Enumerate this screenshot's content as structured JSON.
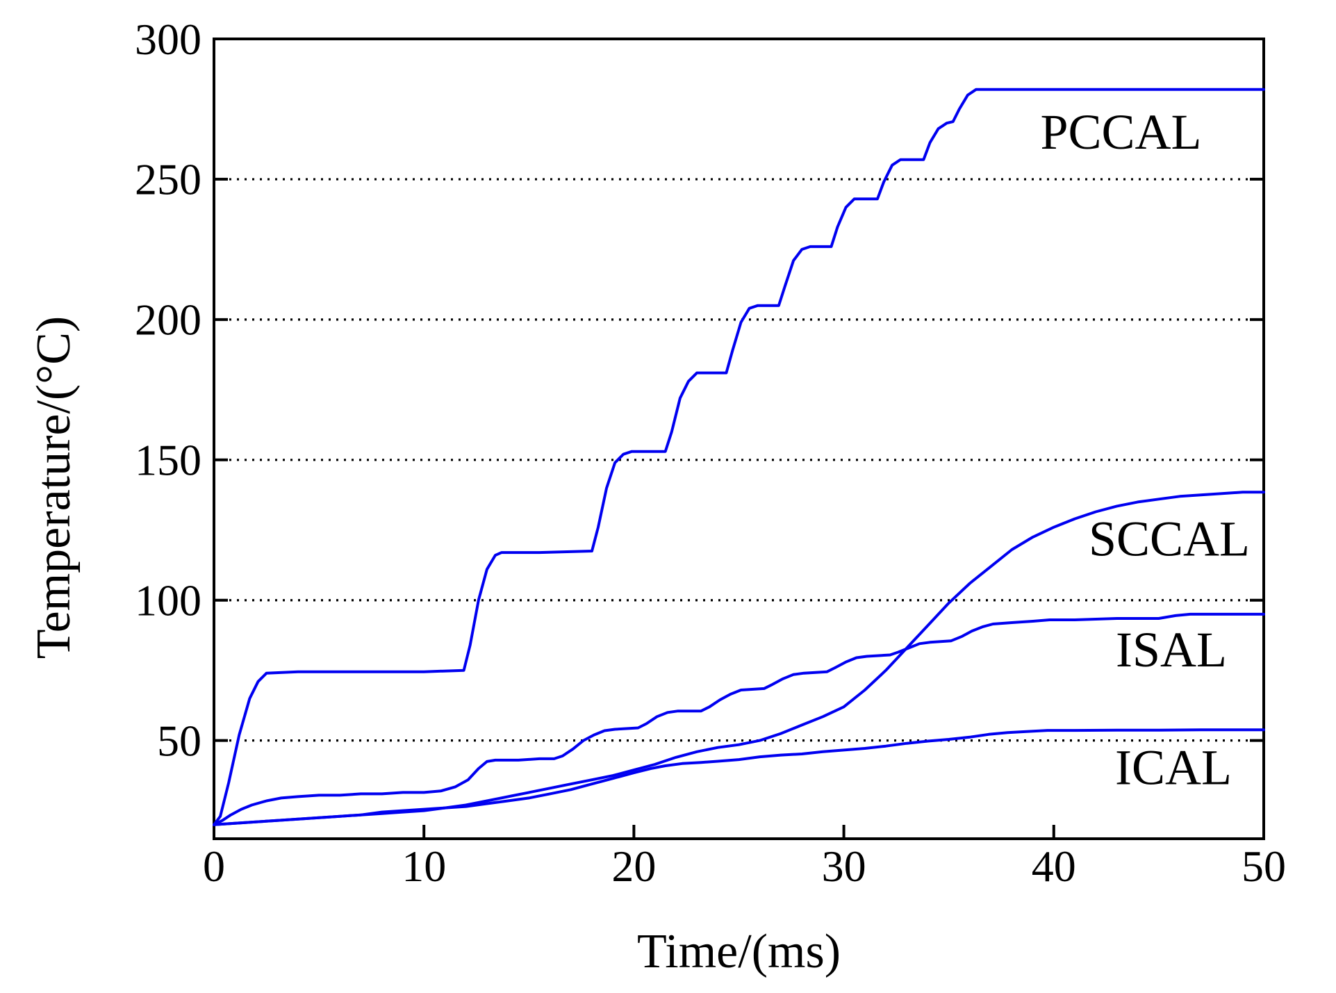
{
  "figure": {
    "background": "#ffffff",
    "curve_color": "#0000f0",
    "axis_color": "#000000",
    "grid_color": "#000000"
  },
  "chart_data": {
    "type": "line",
    "title": "",
    "xlabel": "Time/(ms)",
    "ylabel": "Temperature/(°C)",
    "xlim": [
      0,
      50
    ],
    "ylim": [
      15,
      300
    ],
    "x_ticks": [
      0,
      10,
      20,
      30,
      40,
      50
    ],
    "y_ticks": [
      50,
      100,
      150,
      200,
      250,
      300
    ],
    "grid": "horizontal dotted lines at y = 50,100,150,200,250",
    "legend_position": "inline-labels-right",
    "series": [
      {
        "name": "PCCAL",
        "color": "#0000f0",
        "label_anchor": [
          43.2,
          267
        ],
        "points": [
          [
            0,
            20
          ],
          [
            0.3,
            23
          ],
          [
            0.7,
            35
          ],
          [
            1.2,
            52
          ],
          [
            1.7,
            65
          ],
          [
            2.1,
            71
          ],
          [
            2.5,
            74
          ],
          [
            4,
            74.5
          ],
          [
            7,
            74.5
          ],
          [
            10,
            74.5
          ],
          [
            11.9,
            75
          ],
          [
            12.2,
            84
          ],
          [
            12.6,
            100
          ],
          [
            13,
            111
          ],
          [
            13.4,
            116
          ],
          [
            13.7,
            117
          ],
          [
            15.5,
            117
          ],
          [
            18,
            117.5
          ],
          [
            18.3,
            126
          ],
          [
            18.7,
            140
          ],
          [
            19.1,
            149
          ],
          [
            19.5,
            152
          ],
          [
            19.9,
            153
          ],
          [
            21.5,
            153
          ],
          [
            21.8,
            160
          ],
          [
            22.2,
            172
          ],
          [
            22.6,
            178
          ],
          [
            23,
            181
          ],
          [
            24.4,
            181
          ],
          [
            24.7,
            189
          ],
          [
            25.1,
            199
          ],
          [
            25.5,
            204
          ],
          [
            25.9,
            205
          ],
          [
            26.9,
            205
          ],
          [
            27.2,
            212
          ],
          [
            27.6,
            221
          ],
          [
            28,
            225
          ],
          [
            28.4,
            226
          ],
          [
            29.4,
            226
          ],
          [
            29.7,
            233
          ],
          [
            30.1,
            240
          ],
          [
            30.5,
            243
          ],
          [
            31.6,
            243
          ],
          [
            31.9,
            249
          ],
          [
            32.3,
            255
          ],
          [
            32.7,
            257
          ],
          [
            33.8,
            257
          ],
          [
            34.1,
            263
          ],
          [
            34.5,
            268
          ],
          [
            34.9,
            270
          ],
          [
            35.2,
            270.5
          ],
          [
            35.5,
            275
          ],
          [
            35.9,
            280
          ],
          [
            36.3,
            282
          ],
          [
            40,
            282
          ],
          [
            45,
            282
          ],
          [
            50,
            282
          ]
        ]
      },
      {
        "name": "SCCAL",
        "color": "#0000f0",
        "label_anchor": [
          45.5,
          122
        ],
        "points": [
          [
            0,
            20
          ],
          [
            1,
            20.5
          ],
          [
            2,
            21
          ],
          [
            3,
            21.5
          ],
          [
            4,
            22
          ],
          [
            5,
            22.5
          ],
          [
            6,
            23
          ],
          [
            7,
            23.5
          ],
          [
            8,
            24
          ],
          [
            9,
            24.5
          ],
          [
            10,
            25
          ],
          [
            11,
            26
          ],
          [
            12,
            27
          ],
          [
            13,
            28.5
          ],
          [
            14,
            30
          ],
          [
            15,
            31.5
          ],
          [
            16,
            33
          ],
          [
            17,
            34.5
          ],
          [
            18,
            36
          ],
          [
            19,
            37.5
          ],
          [
            20,
            39.5
          ],
          [
            21,
            41.5
          ],
          [
            22,
            44
          ],
          [
            23,
            46
          ],
          [
            24,
            47.5
          ],
          [
            25,
            48.5
          ],
          [
            26,
            50
          ],
          [
            27,
            52.5
          ],
          [
            28,
            55.5
          ],
          [
            29,
            58.5
          ],
          [
            30,
            62
          ],
          [
            31,
            68
          ],
          [
            32,
            75
          ],
          [
            33,
            83
          ],
          [
            34,
            91
          ],
          [
            35,
            99
          ],
          [
            36,
            106
          ],
          [
            37,
            112
          ],
          [
            38,
            118
          ],
          [
            39,
            122.5
          ],
          [
            40,
            126
          ],
          [
            41,
            129
          ],
          [
            42,
            131.5
          ],
          [
            43,
            133.5
          ],
          [
            44,
            135
          ],
          [
            45,
            136
          ],
          [
            46,
            137
          ],
          [
            47,
            137.5
          ],
          [
            48,
            138
          ],
          [
            49,
            138.5
          ],
          [
            50,
            138.5
          ]
        ]
      },
      {
        "name": "ISAL",
        "color": "#0000f0",
        "label_anchor": [
          45.6,
          82.5
        ],
        "points": [
          [
            0,
            20
          ],
          [
            0.4,
            21.5
          ],
          [
            0.8,
            23.5
          ],
          [
            1.3,
            25.5
          ],
          [
            1.8,
            27
          ],
          [
            2.5,
            28.5
          ],
          [
            3.2,
            29.5
          ],
          [
            4,
            30
          ],
          [
            5,
            30.5
          ],
          [
            6,
            30.5
          ],
          [
            7,
            31
          ],
          [
            8,
            31
          ],
          [
            9,
            31.5
          ],
          [
            10,
            31.5
          ],
          [
            10.8,
            32
          ],
          [
            11.5,
            33.5
          ],
          [
            12.1,
            36
          ],
          [
            12.6,
            40
          ],
          [
            13,
            42.5
          ],
          [
            13.4,
            43
          ],
          [
            14.5,
            43
          ],
          [
            15.5,
            43.5
          ],
          [
            16.2,
            43.5
          ],
          [
            16.6,
            44.5
          ],
          [
            17.1,
            47
          ],
          [
            17.6,
            50
          ],
          [
            18.1,
            52
          ],
          [
            18.6,
            53.5
          ],
          [
            19.1,
            54
          ],
          [
            20.2,
            54.5
          ],
          [
            20.6,
            56
          ],
          [
            21.1,
            58.5
          ],
          [
            21.6,
            60
          ],
          [
            22.1,
            60.5
          ],
          [
            23.2,
            60.5
          ],
          [
            23.6,
            62
          ],
          [
            24.1,
            64.5
          ],
          [
            24.6,
            66.5
          ],
          [
            25.1,
            68
          ],
          [
            26.2,
            68.5
          ],
          [
            26.6,
            70
          ],
          [
            27.1,
            72
          ],
          [
            27.6,
            73.5
          ],
          [
            28.1,
            74
          ],
          [
            29.2,
            74.5
          ],
          [
            29.6,
            76
          ],
          [
            30.1,
            78
          ],
          [
            30.6,
            79.5
          ],
          [
            31.1,
            80
          ],
          [
            32.2,
            80.5
          ],
          [
            32.6,
            81.5
          ],
          [
            33.1,
            83
          ],
          [
            33.6,
            84.5
          ],
          [
            34.1,
            85
          ],
          [
            35.1,
            85.5
          ],
          [
            35.6,
            87
          ],
          [
            36.1,
            89
          ],
          [
            36.6,
            90.5
          ],
          [
            37.1,
            91.5
          ],
          [
            38,
            92
          ],
          [
            39,
            92.5
          ],
          [
            39.8,
            93
          ],
          [
            41,
            93
          ],
          [
            43,
            93.5
          ],
          [
            45,
            93.5
          ],
          [
            45.8,
            94.5
          ],
          [
            46.5,
            95
          ],
          [
            48,
            95
          ],
          [
            50,
            95
          ]
        ]
      },
      {
        "name": "ICAL",
        "color": "#0000f0",
        "label_anchor": [
          45.7,
          40.5
        ],
        "points": [
          [
            0,
            20
          ],
          [
            1,
            20.5
          ],
          [
            2,
            21
          ],
          [
            3,
            21.5
          ],
          [
            4,
            22
          ],
          [
            5,
            22.5
          ],
          [
            6,
            23
          ],
          [
            7,
            23.5
          ],
          [
            8,
            24.5
          ],
          [
            9,
            25
          ],
          [
            10,
            25.5
          ],
          [
            11,
            26
          ],
          [
            12,
            26.5
          ],
          [
            13,
            27.5
          ],
          [
            14,
            28.5
          ],
          [
            15,
            29.5
          ],
          [
            16,
            31
          ],
          [
            17,
            32.5
          ],
          [
            18,
            34.5
          ],
          [
            19,
            36.5
          ],
          [
            20,
            38.5
          ],
          [
            20.8,
            40
          ],
          [
            21.5,
            41
          ],
          [
            22.3,
            41.8
          ],
          [
            23.2,
            42.2
          ],
          [
            24,
            42.6
          ],
          [
            25,
            43.2
          ],
          [
            26,
            44.2
          ],
          [
            27,
            44.8
          ],
          [
            28,
            45.2
          ],
          [
            29,
            46
          ],
          [
            30,
            46.6
          ],
          [
            31,
            47.2
          ],
          [
            32,
            48
          ],
          [
            33,
            49
          ],
          [
            34,
            49.8
          ],
          [
            35,
            50.4
          ],
          [
            36,
            51.2
          ],
          [
            36.9,
            52.2
          ],
          [
            37.8,
            52.8
          ],
          [
            38.7,
            53.2
          ],
          [
            39.7,
            53.6
          ],
          [
            41,
            53.6
          ],
          [
            43,
            53.7
          ],
          [
            45,
            53.7
          ],
          [
            47,
            53.8
          ],
          [
            50,
            53.8
          ]
        ]
      }
    ]
  }
}
